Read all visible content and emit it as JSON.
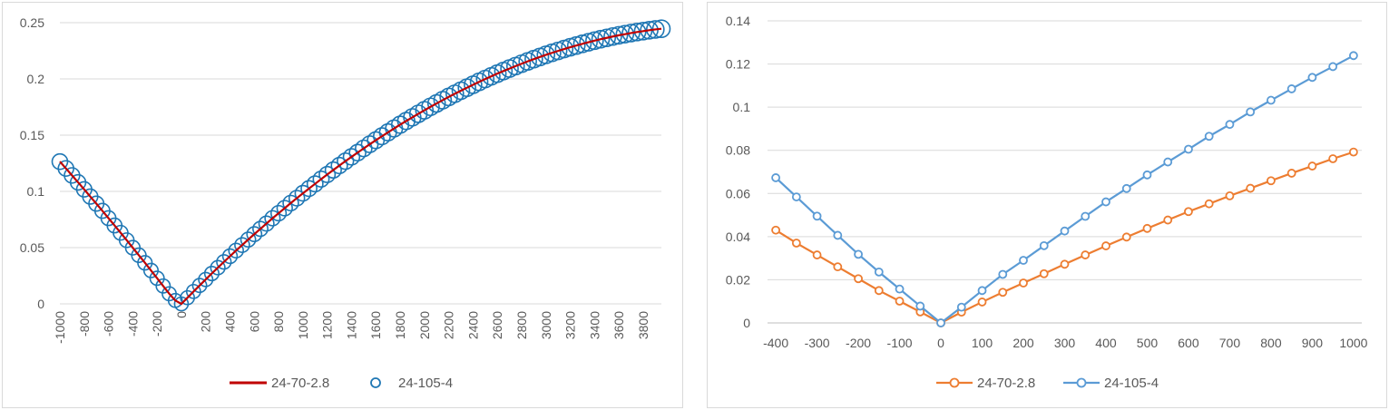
{
  "chart_data": [
    {
      "type": "scatter",
      "title": "",
      "xlabel": "",
      "ylabel": "",
      "xlim": [
        -1000,
        3950
      ],
      "ylim": [
        0,
        0.25
      ],
      "x_ticks": [
        "-1000",
        "-800",
        "-600",
        "-400",
        "-200",
        "0",
        "200",
        "400",
        "600",
        "800",
        "1000",
        "1200",
        "1400",
        "1600",
        "1800",
        "2000",
        "2200",
        "2400",
        "2600",
        "2800",
        "3000",
        "3200",
        "3400",
        "3600",
        "3800"
      ],
      "y_ticks": [
        "0",
        "0.05",
        "0.1",
        "0.15",
        "0.2",
        "0.25"
      ],
      "grid": true,
      "legend_position": "bottom",
      "series": [
        {
          "name": "24-70-2.8",
          "style": "line",
          "color": "#c00000",
          "x_start": -1000,
          "x_step": 50,
          "count": 100,
          "values": [
            0.1265,
            0.1204,
            0.1142,
            0.108,
            0.1018,
            0.0954,
            0.0891,
            0.0827,
            0.0762,
            0.0697,
            0.0632,
            0.0566,
            0.0499,
            0.0432,
            0.0365,
            0.0297,
            0.0228,
            0.0159,
            0.009,
            0.003,
            0.0,
            0.0055,
            0.011,
            0.0164,
            0.0217,
            0.027,
            0.0322,
            0.0373,
            0.0424,
            0.0474,
            0.0523,
            0.0572,
            0.062,
            0.0667,
            0.0714,
            0.0761,
            0.0806,
            0.0851,
            0.0896,
            0.094,
            0.0983,
            0.1025,
            0.1067,
            0.1109,
            0.115,
            0.119,
            0.123,
            0.1269,
            0.1307,
            0.1345,
            0.1382,
            0.1419,
            0.1455,
            0.149,
            0.1525,
            0.1559,
            0.1593,
            0.1626,
            0.1658,
            0.169,
            0.1721,
            0.1752,
            0.1782,
            0.1811,
            0.184,
            0.1868,
            0.1895,
            0.1922,
            0.1948,
            0.1974,
            0.1999,
            0.2023,
            0.2047,
            0.207,
            0.2092,
            0.2114,
            0.2135,
            0.2156,
            0.2176,
            0.2195,
            0.2214,
            0.2232,
            0.2249,
            0.2266,
            0.2282,
            0.2297,
            0.2312,
            0.2326,
            0.234,
            0.2353,
            0.2365,
            0.2377,
            0.2388,
            0.2398,
            0.2408,
            0.2417,
            0.2425,
            0.2433,
            0.244,
            0.2446
          ]
        },
        {
          "name": "24-105-4",
          "style": "marker",
          "color": "#1f77b4"
        }
      ]
    },
    {
      "type": "line",
      "title": "",
      "xlabel": "",
      "ylabel": "",
      "xlim": [
        -420,
        1020
      ],
      "ylim": [
        0,
        0.14
      ],
      "x_ticks": [
        "-400",
        "-300",
        "-200",
        "-100",
        "0",
        "100",
        "200",
        "300",
        "400",
        "500",
        "600",
        "700",
        "800",
        "900",
        "1000"
      ],
      "y_ticks": [
        "0",
        "0.02",
        "0.04",
        "0.06",
        "0.08",
        "0.1",
        "0.12",
        "0.14"
      ],
      "grid": true,
      "legend_position": "bottom",
      "x": [
        -400,
        -350,
        -300,
        -250,
        -200,
        -150,
        -100,
        -50,
        0,
        50,
        100,
        150,
        200,
        250,
        300,
        350,
        400,
        450,
        500,
        550,
        600,
        650,
        700,
        750,
        800,
        850,
        900,
        950,
        1000
      ],
      "series": [
        {
          "name": "24-70-2.8",
          "color": "#ed7d31",
          "values": [
            0.043,
            0.037,
            0.0315,
            0.026,
            0.0205,
            0.015,
            0.0101,
            0.0051,
            0.0,
            0.005,
            0.0097,
            0.0142,
            0.0185,
            0.0228,
            0.0272,
            0.0315,
            0.0357,
            0.0398,
            0.0438,
            0.0477,
            0.0516,
            0.0552,
            0.0589,
            0.0624,
            0.0659,
            0.0694,
            0.0727,
            0.0761,
            0.0792
          ]
        },
        {
          "name": "24-105-4",
          "color": "#5b9bd5",
          "values": [
            0.0673,
            0.0584,
            0.0495,
            0.0406,
            0.0318,
            0.0236,
            0.0157,
            0.0078,
            0.0,
            0.0073,
            0.015,
            0.0225,
            0.029,
            0.0358,
            0.0426,
            0.0494,
            0.0561,
            0.0623,
            0.0686,
            0.0746,
            0.0805,
            0.0865,
            0.092,
            0.0978,
            0.1032,
            0.1085,
            0.1138,
            0.1188,
            0.1239
          ]
        }
      ]
    }
  ]
}
